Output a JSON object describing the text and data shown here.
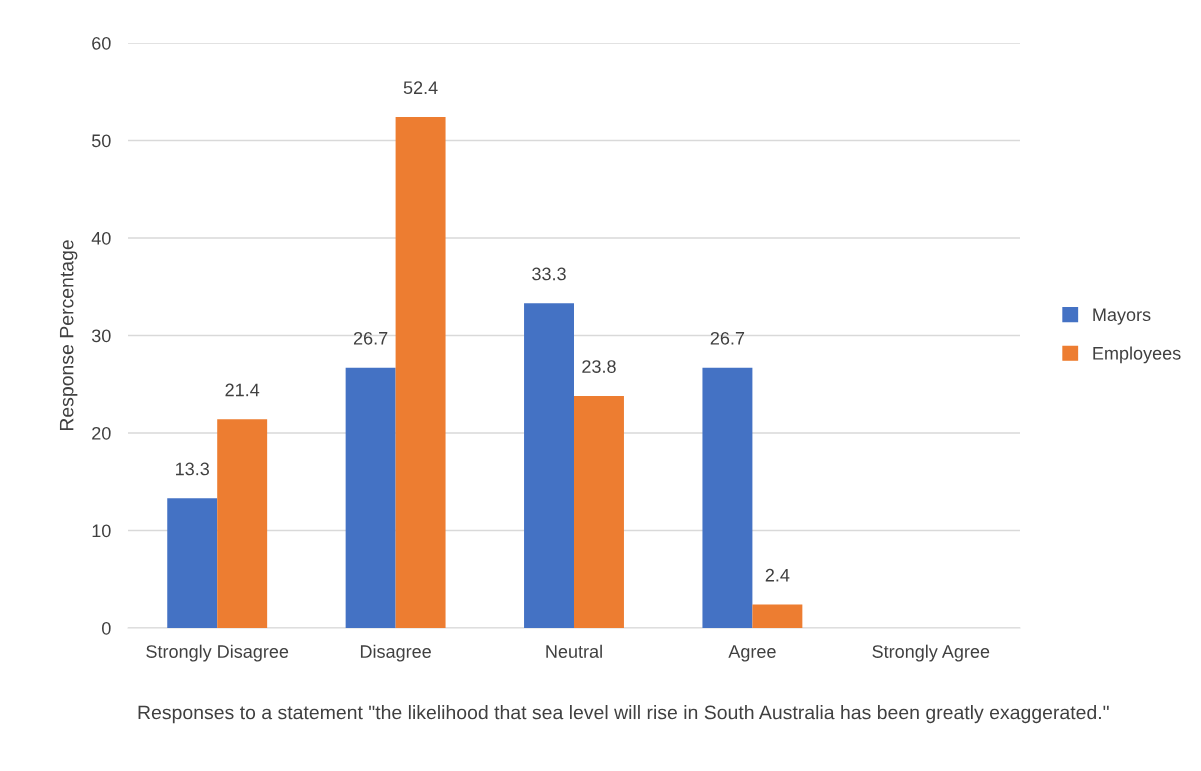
{
  "chart_data": {
    "type": "bar",
    "ylabel": "Response Percentage",
    "categories": [
      "Strongly Disagree",
      "Disagree",
      "Neutral",
      "Agree",
      "Strongly Agree"
    ],
    "series": [
      {
        "name": "Mayors",
        "color": "#4472c4",
        "values": [
          13.3,
          26.7,
          33.3,
          26.7,
          0
        ],
        "value_labels": [
          "13.3",
          "26.7",
          "33.3",
          "26.7",
          null
        ]
      },
      {
        "name": "Employees",
        "color": "#ed7d31",
        "values": [
          21.4,
          52.4,
          23.8,
          2.4,
          0
        ],
        "value_labels": [
          "21.4",
          "52.4",
          "23.8",
          "2.4",
          null
        ]
      }
    ],
    "ylim": [
      0,
      60
    ],
    "yticks": [
      0,
      10,
      20,
      30,
      40,
      50,
      60
    ],
    "grid": "y",
    "legend": "right",
    "annotations": [
      "Responses to a statement \"the likelihood that sea level will rise in South Australia has been greatly exaggerated.\""
    ]
  }
}
